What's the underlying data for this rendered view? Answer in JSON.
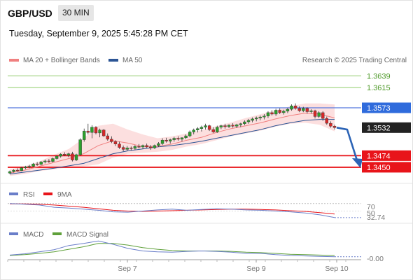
{
  "header": {
    "symbol": "GBP/USD",
    "timeframe": "30 MIN",
    "datetime": "Tuesday, September 9, 2025 5:45:28 PM CET"
  },
  "legend": {
    "ma20": "MA 20 + Bollinger Bands",
    "ma50": "MA 50",
    "source": "Research © 2025 Trading Central"
  },
  "colors": {
    "ma20": "#f08080",
    "ma50": "#2c5595",
    "up_candle": "#2ca02c",
    "down_candle": "#d62728",
    "resistance": "#8fcc6a",
    "support": "#e8141a",
    "pivot": "#5577dd",
    "last_price": "#333333",
    "rsi": "#6a7ec9",
    "rsi_ma": "#e8141a",
    "macd": "#6a7ec9",
    "macd_signal": "#5fa03a",
    "forecast_arrow": "#2c64b6"
  },
  "levels": [
    {
      "label": "1.3639",
      "value": 1.3639,
      "type": "resistance"
    },
    {
      "label": "1.3615",
      "value": 1.3615,
      "type": "resistance"
    },
    {
      "label": "1.3573",
      "value": 1.3573,
      "type": "pivot"
    },
    {
      "label": "1.3532",
      "value": 1.3532,
      "type": "last_price"
    },
    {
      "label": "1.3474",
      "value": 1.3474,
      "type": "support"
    },
    {
      "label": "1.3450",
      "value": 1.345,
      "type": "support"
    }
  ],
  "rsi_panel": {
    "legend_rsi": "RSI",
    "legend_ma": "9MA",
    "level_upper": "70",
    "level_mid": "50",
    "current": "32.74",
    "upper_value": 70,
    "mid_value": 50,
    "current_value": 32.74
  },
  "macd_panel": {
    "legend_macd": "MACD",
    "legend_signal": "MACD Signal",
    "current": "-0.00"
  },
  "x_axis": {
    "labels": [
      "Sep 7",
      "Sep 9",
      "Sep 10"
    ]
  },
  "chart_data": {
    "type": "candlestick",
    "title": "GBP/USD",
    "timeframe": "30 MIN",
    "ylim": [
      1.3434,
      1.3657
    ],
    "candles_ohlc": [
      [
        1.3438,
        1.3443,
        1.3436,
        1.3441
      ],
      [
        1.3441,
        1.3446,
        1.3439,
        1.3444
      ],
      [
        1.3444,
        1.3448,
        1.3441,
        1.3443
      ],
      [
        1.3443,
        1.3451,
        1.3442,
        1.3449
      ],
      [
        1.3449,
        1.3453,
        1.3446,
        1.3451
      ],
      [
        1.3451,
        1.3455,
        1.3448,
        1.3452
      ],
      [
        1.3452,
        1.3459,
        1.345,
        1.3457
      ],
      [
        1.3457,
        1.3461,
        1.3453,
        1.3456
      ],
      [
        1.3456,
        1.3463,
        1.3454,
        1.3461
      ],
      [
        1.3461,
        1.3466,
        1.3458,
        1.3463
      ],
      [
        1.3463,
        1.3467,
        1.3459,
        1.3462
      ],
      [
        1.3462,
        1.347,
        1.346,
        1.3468
      ],
      [
        1.3468,
        1.3475,
        1.3466,
        1.3473
      ],
      [
        1.3473,
        1.3479,
        1.347,
        1.3477
      ],
      [
        1.3477,
        1.3481,
        1.3473,
        1.3475
      ],
      [
        1.3475,
        1.348,
        1.3471,
        1.3478
      ],
      [
        1.3478,
        1.3482,
        1.3462,
        1.3465
      ],
      [
        1.3465,
        1.3478,
        1.3463,
        1.3476
      ],
      [
        1.3476,
        1.351,
        1.3474,
        1.3507
      ],
      [
        1.3507,
        1.353,
        1.3503,
        1.3525
      ],
      [
        1.3525,
        1.354,
        1.3518,
        1.3522
      ],
      [
        1.3522,
        1.3537,
        1.351,
        1.3533
      ],
      [
        1.3533,
        1.3535,
        1.3518,
        1.3521
      ],
      [
        1.3521,
        1.353,
        1.3512,
        1.3527
      ],
      [
        1.3527,
        1.3529,
        1.3513,
        1.3515
      ],
      [
        1.3515,
        1.352,
        1.3505,
        1.3508
      ],
      [
        1.3508,
        1.3514,
        1.35,
        1.3503
      ],
      [
        1.3503,
        1.3506,
        1.3494,
        1.3498
      ],
      [
        1.3498,
        1.3503,
        1.3488,
        1.3491
      ],
      [
        1.3491,
        1.3495,
        1.3483,
        1.3487
      ],
      [
        1.3487,
        1.3494,
        1.3484,
        1.349
      ],
      [
        1.349,
        1.3493,
        1.3485,
        1.3489
      ],
      [
        1.3489,
        1.3496,
        1.3486,
        1.3493
      ],
      [
        1.3493,
        1.3498,
        1.3489,
        1.3492
      ],
      [
        1.3492,
        1.3497,
        1.3488,
        1.3495
      ],
      [
        1.3495,
        1.3499,
        1.349,
        1.3492
      ],
      [
        1.3492,
        1.3496,
        1.3486,
        1.349
      ],
      [
        1.349,
        1.3497,
        1.3488,
        1.3495
      ],
      [
        1.3495,
        1.3502,
        1.3492,
        1.3499
      ],
      [
        1.3499,
        1.351,
        1.3496,
        1.3506
      ],
      [
        1.3506,
        1.3511,
        1.3501,
        1.3504
      ],
      [
        1.3504,
        1.3509,
        1.3499,
        1.3507
      ],
      [
        1.3507,
        1.3513,
        1.3503,
        1.351
      ],
      [
        1.351,
        1.3514,
        1.3505,
        1.3508
      ],
      [
        1.3508,
        1.3512,
        1.3503,
        1.3511
      ],
      [
        1.3511,
        1.3518,
        1.3508,
        1.3515
      ],
      [
        1.3515,
        1.3526,
        1.3512,
        1.3523
      ],
      [
        1.3523,
        1.353,
        1.3518,
        1.3527
      ],
      [
        1.3527,
        1.3533,
        1.3522,
        1.353
      ],
      [
        1.353,
        1.3536,
        1.3524,
        1.3533
      ],
      [
        1.3533,
        1.354,
        1.3528,
        1.3536
      ],
      [
        1.3536,
        1.3538,
        1.3525,
        1.3528
      ],
      [
        1.3528,
        1.3533,
        1.3521,
        1.3523
      ],
      [
        1.3523,
        1.3536,
        1.3521,
        1.3533
      ],
      [
        1.3533,
        1.3538,
        1.3529,
        1.3536
      ],
      [
        1.3536,
        1.354,
        1.353,
        1.3534
      ],
      [
        1.3534,
        1.3539,
        1.3531,
        1.3537
      ],
      [
        1.3537,
        1.3541,
        1.3532,
        1.3535
      ],
      [
        1.3535,
        1.354,
        1.3531,
        1.3538
      ],
      [
        1.3538,
        1.3542,
        1.3533,
        1.354
      ],
      [
        1.354,
        1.3547,
        1.3537,
        1.3544
      ],
      [
        1.3544,
        1.355,
        1.354,
        1.3547
      ],
      [
        1.3547,
        1.3553,
        1.3543,
        1.355
      ],
      [
        1.355,
        1.3555,
        1.3545,
        1.3552
      ],
      [
        1.3552,
        1.3557,
        1.3547,
        1.3554
      ],
      [
        1.3554,
        1.356,
        1.3549,
        1.3556
      ],
      [
        1.3556,
        1.3566,
        1.3552,
        1.3563
      ],
      [
        1.3563,
        1.3568,
        1.3557,
        1.356
      ],
      [
        1.356,
        1.3571,
        1.3556,
        1.3568
      ],
      [
        1.3568,
        1.3572,
        1.356,
        1.3563
      ],
      [
        1.3563,
        1.3569,
        1.3559,
        1.3566
      ],
      [
        1.3566,
        1.3573,
        1.3562,
        1.357
      ],
      [
        1.357,
        1.358,
        1.3567,
        1.3577
      ],
      [
        1.3577,
        1.3582,
        1.3569,
        1.3572
      ],
      [
        1.3572,
        1.3576,
        1.3564,
        1.3567
      ],
      [
        1.3567,
        1.3575,
        1.3564,
        1.3572
      ],
      [
        1.3572,
        1.3574,
        1.3561,
        1.3565
      ],
      [
        1.3565,
        1.357,
        1.3561,
        1.3567
      ],
      [
        1.3567,
        1.3569,
        1.3551,
        1.3555
      ],
      [
        1.3555,
        1.3566,
        1.3552,
        1.3563
      ],
      [
        1.3563,
        1.3566,
        1.3546,
        1.3551
      ],
      [
        1.3551,
        1.3555,
        1.3538,
        1.3541
      ],
      [
        1.3541,
        1.3545,
        1.3532,
        1.3535
      ],
      [
        1.3535,
        1.3538,
        1.3528,
        1.3532
      ]
    ],
    "ma20": [
      1.3438,
      1.3444,
      1.3452,
      1.346,
      1.3468,
      1.3478,
      1.3495,
      1.3505,
      1.35,
      1.3493,
      1.3493,
      1.3498,
      1.3506,
      1.3512,
      1.3522,
      1.353,
      1.3536,
      1.3542,
      1.355,
      1.3557,
      1.3562,
      1.356,
      1.3552
    ],
    "ma50": [
      1.3436,
      1.344,
      1.3444,
      1.3448,
      1.3453,
      1.3458,
      1.3468,
      1.3478,
      1.3484,
      1.3488,
      1.3492,
      1.3495,
      1.3499,
      1.3504,
      1.351,
      1.3516,
      1.3522,
      1.3528,
      1.3536,
      1.3542,
      1.3547,
      1.3549,
      1.3549
    ],
    "bb_upper": [
      1.3446,
      1.3452,
      1.3462,
      1.3476,
      1.3488,
      1.351,
      1.3536,
      1.354,
      1.3528,
      1.3518,
      1.351,
      1.3514,
      1.352,
      1.3527,
      1.3535,
      1.3543,
      1.3552,
      1.356,
      1.3568,
      1.3576,
      1.3582,
      1.3582,
      1.358
    ],
    "bb_lower": [
      1.3432,
      1.3436,
      1.3442,
      1.3446,
      1.345,
      1.3452,
      1.3456,
      1.347,
      1.3478,
      1.348,
      1.3482,
      1.3486,
      1.3493,
      1.3498,
      1.3506,
      1.3514,
      1.352,
      1.3526,
      1.3534,
      1.354,
      1.3542,
      1.3538,
      1.3524
    ],
    "forecast": [
      [
        1.3532,
        1.3528
      ],
      [
        1.3528,
        1.345
      ]
    ],
    "rsi": [
      70,
      68,
      66,
      60,
      58,
      55,
      52,
      48,
      47,
      50,
      53,
      55,
      52,
      54,
      56,
      55,
      53,
      52,
      50,
      48,
      45,
      40,
      32.74
    ],
    "rsi_ma": [
      69,
      69,
      68,
      66,
      63,
      60,
      56,
      52,
      50,
      49,
      50,
      51,
      52,
      53,
      54,
      55,
      55,
      54,
      53,
      51,
      49,
      46,
      42
    ],
    "macd": [
      0.0002,
      0.0005,
      0.001,
      0.0015,
      0.0025,
      0.003,
      0.0036,
      0.0028,
      0.0018,
      0.0012,
      0.001,
      0.0009,
      0.0011,
      0.0012,
      0.0011,
      0.0009,
      0.0006,
      0.0006,
      0.0003,
      0.0001,
      0.0,
      -0.0001,
      -0.0002
    ],
    "macd_signal": [
      0.0001,
      0.0003,
      0.0006,
      0.001,
      0.0016,
      0.0022,
      0.003,
      0.003,
      0.0026,
      0.002,
      0.0016,
      0.0013,
      0.0012,
      0.0012,
      0.0012,
      0.0011,
      0.0009,
      0.0008,
      0.0006,
      0.0004,
      0.0003,
      0.0002,
      0.0001
    ]
  }
}
